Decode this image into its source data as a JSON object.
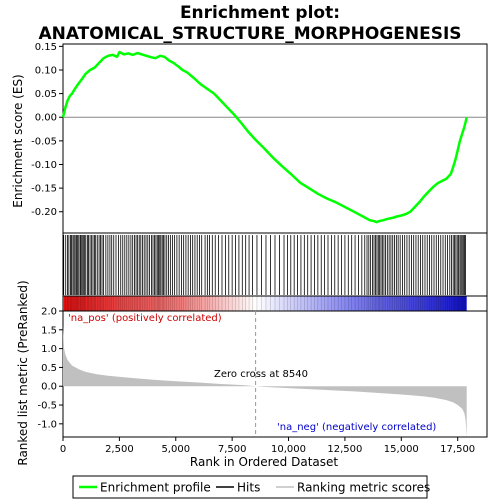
{
  "chart_data": {
    "type": "line",
    "title": "Enrichment plot:\nANATOMICAL_STRUCTURE_MORPHOGENESIS",
    "title_lines": [
      "Enrichment plot:",
      "ANATOMICAL_STRUCTURE_MORPHOGENESIS"
    ],
    "es_panel": {
      "ylabel": "Enrichment score (ES)",
      "ylim": [
        -0.245,
        0.155
      ],
      "yticks": [
        0.15,
        0.1,
        0.05,
        0.0,
        -0.05,
        -0.1,
        -0.15,
        -0.2
      ],
      "ytick_labels": [
        "0.15",
        "0.10",
        "0.05",
        "0.00",
        "-0.05",
        "-0.10",
        "-0.15",
        "-0.20"
      ],
      "line_color": "#00ff00",
      "x": [
        0,
        100,
        200,
        300,
        400,
        500,
        600,
        700,
        800,
        900,
        1000,
        1200,
        1400,
        1600,
        1800,
        2000,
        2200,
        2400,
        2500,
        2700,
        2900,
        3100,
        3300,
        3500,
        3700,
        3900,
        4100,
        4300,
        4500,
        4700,
        4900,
        5100,
        5300,
        5500,
        5800,
        6100,
        6400,
        6700,
        7000,
        7300,
        7600,
        7900,
        8200,
        8540,
        8900,
        9300,
        9700,
        10100,
        10500,
        10900,
        11300,
        11700,
        12100,
        12500,
        12900,
        13300,
        13600,
        13800,
        13900,
        14000,
        14200,
        14400,
        14600,
        14800,
        15000,
        15200,
        15400,
        15600,
        15800,
        16000,
        16200,
        16400,
        16600,
        16800,
        17000,
        17200,
        17300,
        17400,
        17500,
        17600,
        17700,
        17800,
        17850,
        17900
      ],
      "values": [
        0.0,
        0.02,
        0.035,
        0.045,
        0.05,
        0.058,
        0.065,
        0.072,
        0.078,
        0.085,
        0.092,
        0.1,
        0.105,
        0.115,
        0.125,
        0.13,
        0.132,
        0.128,
        0.138,
        0.133,
        0.135,
        0.132,
        0.136,
        0.133,
        0.13,
        0.127,
        0.125,
        0.13,
        0.128,
        0.12,
        0.115,
        0.108,
        0.1,
        0.095,
        0.083,
        0.07,
        0.06,
        0.05,
        0.035,
        0.02,
        0.005,
        -0.012,
        -0.03,
        -0.048,
        -0.065,
        -0.085,
        -0.103,
        -0.12,
        -0.138,
        -0.15,
        -0.162,
        -0.172,
        -0.18,
        -0.19,
        -0.2,
        -0.21,
        -0.218,
        -0.22,
        -0.222,
        -0.22,
        -0.218,
        -0.215,
        -0.213,
        -0.21,
        -0.208,
        -0.205,
        -0.2,
        -0.19,
        -0.18,
        -0.168,
        -0.158,
        -0.148,
        -0.14,
        -0.135,
        -0.13,
        -0.12,
        -0.105,
        -0.09,
        -0.07,
        -0.05,
        -0.035,
        -0.02,
        -0.01,
        0.0
      ]
    },
    "hits": {
      "color": "#000000",
      "positions": [
        30,
        120,
        200,
        260,
        330,
        380,
        440,
        490,
        540,
        600,
        650,
        700,
        760,
        800,
        850,
        900,
        960,
        1010,
        1080,
        1130,
        1200,
        1270,
        1330,
        1400,
        1450,
        1520,
        1600,
        1660,
        1730,
        1800,
        1900,
        1990,
        2080,
        2160,
        2250,
        2350,
        2460,
        2560,
        2650,
        2740,
        2830,
        2920,
        3010,
        3090,
        3170,
        3240,
        3310,
        3380,
        3450,
        3520,
        3600,
        3680,
        3760,
        3840,
        3920,
        3990,
        4060,
        4120,
        4180,
        4230,
        4290,
        4340,
        4400,
        4460,
        4520,
        4600,
        4680,
        4760,
        4850,
        4950,
        5050,
        5150,
        5250,
        5350,
        5450,
        5550,
        5650,
        5750,
        5850,
        5950,
        6050,
        6150,
        6300,
        6400,
        6500,
        6620,
        6750,
        6900,
        7050,
        7200,
        7350,
        7500,
        7650,
        7800,
        7950,
        8100,
        8250,
        8400,
        8600,
        8800,
        9000,
        9200,
        9400,
        9600,
        9800,
        9950,
        10100,
        10250,
        10400,
        10550,
        10700,
        10850,
        11000,
        11150,
        11300,
        11450,
        11600,
        11750,
        11900,
        12050,
        12200,
        12350,
        12500,
        12650,
        12800,
        12950,
        13100,
        13250,
        13380,
        13480,
        13560,
        13640,
        13720,
        13790,
        13860,
        13920,
        13980,
        14040,
        14100,
        14160,
        14230,
        14300,
        14380,
        14460,
        14540,
        14620,
        14700,
        14780,
        14860,
        14950,
        15050,
        15150,
        15250,
        15350,
        15450,
        15550,
        15650,
        15750,
        15850,
        15950,
        16050,
        16150,
        16250,
        16350,
        16450,
        16550,
        16650,
        16750,
        16850,
        16950,
        17050,
        17150,
        17230,
        17300,
        17360,
        17420,
        17480,
        17540,
        17600,
        17650,
        17700,
        17750,
        17800,
        17850
      ]
    },
    "rank_panel": {
      "ylabel": "Ranked list metric (PreRanked)",
      "ylim": [
        -1.35,
        2.0
      ],
      "yticks": [
        2.0,
        1.5,
        1.0,
        0.5,
        0.0,
        -0.5,
        -1.0
      ],
      "ytick_labels": [
        "2.0",
        "1.5",
        "1.0",
        "0.5",
        "0.0",
        "-0.5",
        "-1.0"
      ],
      "fill_color": "#c0c0c0",
      "x": [
        0,
        50,
        100,
        200,
        400,
        700,
        1000,
        1500,
        2000,
        3000,
        4000,
        5000,
        6000,
        7000,
        8000,
        8540,
        9000,
        10000,
        11000,
        12000,
        13000,
        14000,
        15000,
        16000,
        16500,
        17000,
        17300,
        17500,
        17700,
        17800,
        17850,
        17900
      ],
      "values": [
        1.6,
        1.0,
        0.85,
        0.7,
        0.55,
        0.45,
        0.38,
        0.32,
        0.28,
        0.22,
        0.17,
        0.13,
        0.1,
        0.06,
        0.03,
        0.0,
        -0.02,
        -0.05,
        -0.08,
        -0.11,
        -0.14,
        -0.18,
        -0.22,
        -0.27,
        -0.31,
        -0.37,
        -0.43,
        -0.5,
        -0.6,
        -0.72,
        -0.9,
        -1.35
      ],
      "pos_label": "'na_pos' (positively correlated)",
      "neg_label": "'na_neg' (negatively correlated)",
      "zero_cross_label": "Zero cross at 8540",
      "zero_cross": 8540
    },
    "xlabel": "Rank in Ordered Dataset",
    "xlim": [
      0,
      18800
    ],
    "xticks": [
      0,
      2500,
      5000,
      7500,
      10000,
      12500,
      15000,
      17500
    ],
    "xtick_labels": [
      "0",
      "2,500",
      "5,000",
      "7,500",
      "10,000",
      "12,500",
      "15,000",
      "17,500"
    ],
    "n_genes": 17900,
    "legend": {
      "placement": "bottom",
      "entries": [
        {
          "label": "Enrichment profile",
          "color": "#00ff00"
        },
        {
          "label": "Hits",
          "color": "#000000"
        },
        {
          "label": "Ranking metric scores",
          "color": "#c0c0c0"
        }
      ]
    }
  }
}
